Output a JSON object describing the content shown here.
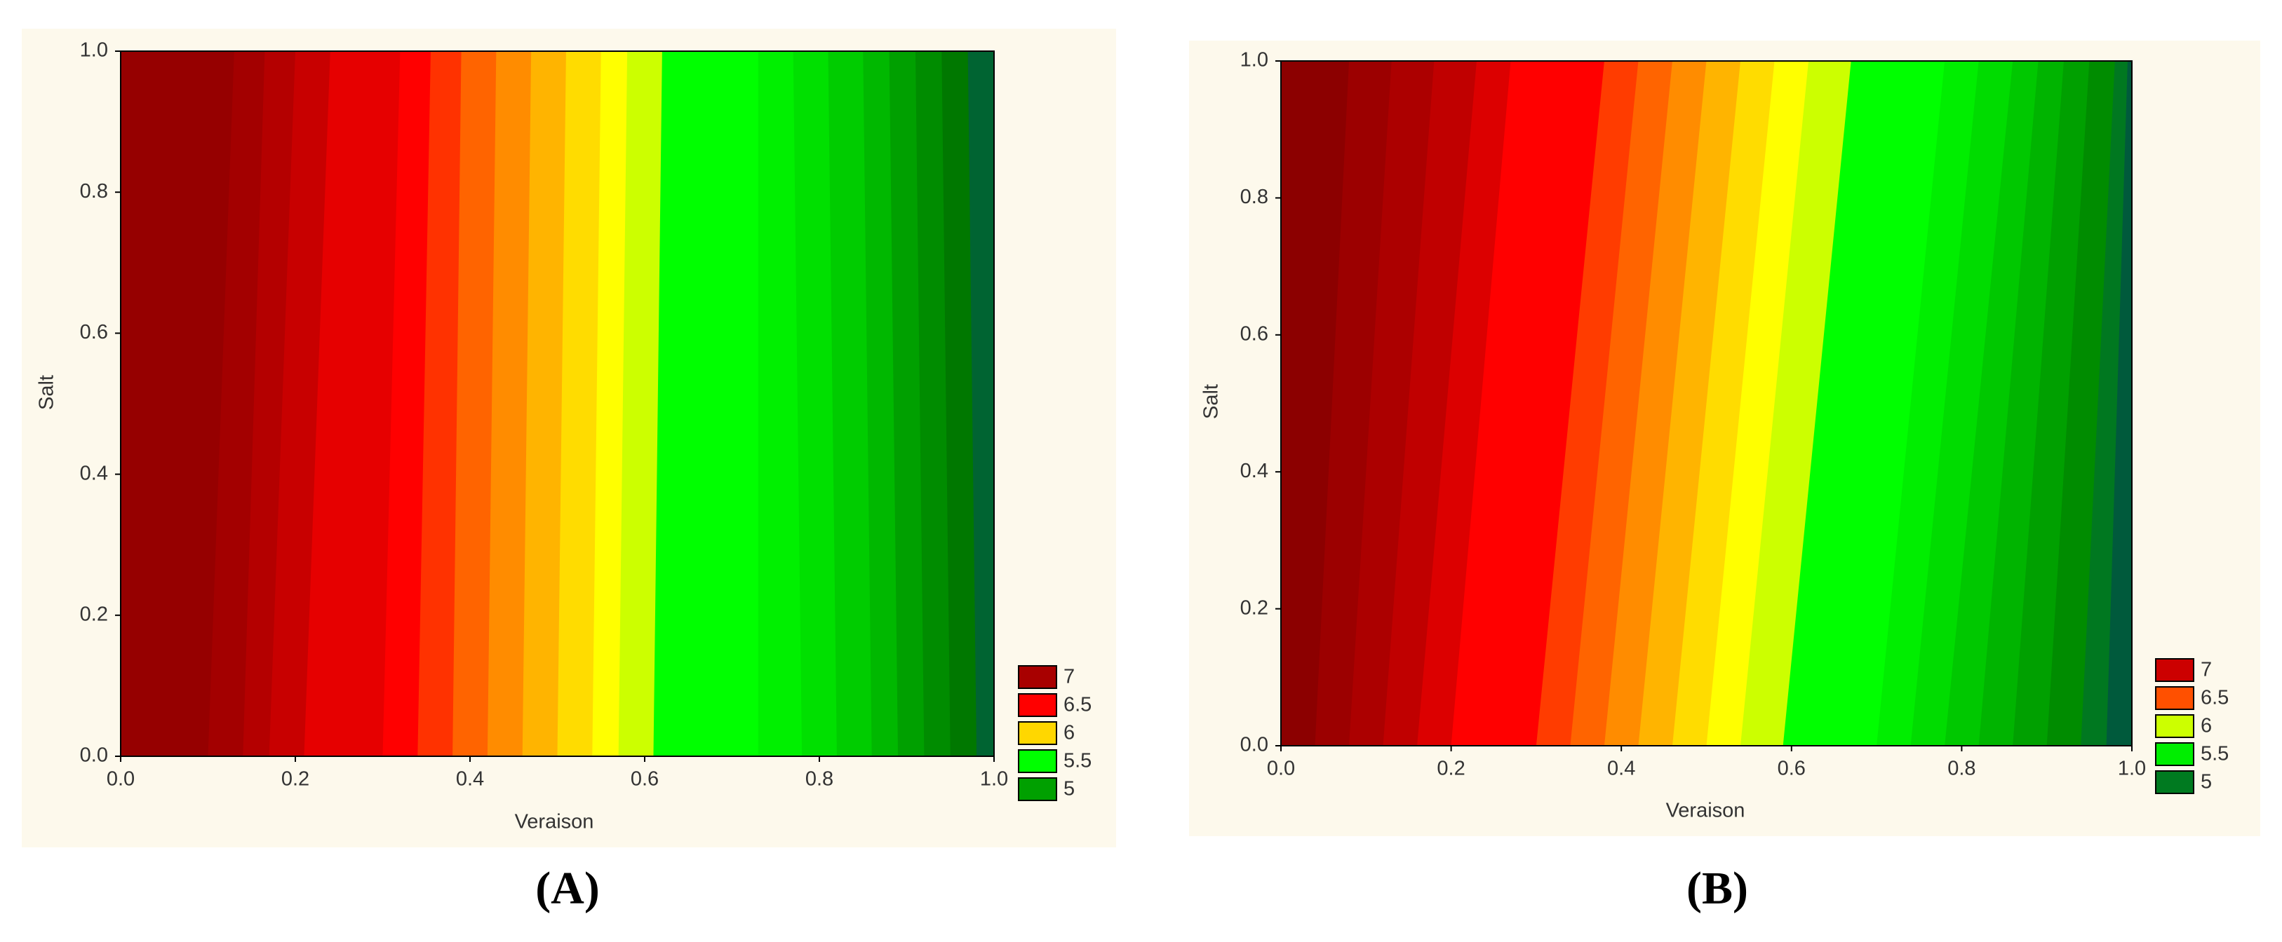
{
  "chart_data": [
    {
      "type": "contour",
      "panel_label": "(A)",
      "xlabel": "Veraison",
      "ylabel": "Salt",
      "xlim": [
        0,
        1
      ],
      "ylim": [
        0,
        1
      ],
      "xticks": [
        {
          "value": 0,
          "label": "0.0"
        },
        0.2,
        0.4,
        0.6,
        0.8,
        {
          "value": 1,
          "label": "1.0"
        }
      ],
      "yticks": [
        {
          "value": 0,
          "label": "0.0"
        },
        0.2,
        0.4,
        0.6,
        0.8,
        {
          "value": 1,
          "label": "1.0"
        }
      ],
      "boundaries_bottom": [
        0.1,
        0.14,
        0.17,
        0.21,
        0.3,
        0.34,
        0.38,
        0.42,
        0.46,
        0.5,
        0.54,
        0.57,
        0.61,
        0.73,
        0.78,
        0.82,
        0.86,
        0.89,
        0.92,
        0.95,
        0.98
      ],
      "boundaries_top": [
        0.13,
        0.165,
        0.2,
        0.24,
        0.32,
        0.355,
        0.39,
        0.43,
        0.47,
        0.51,
        0.55,
        0.58,
        0.62,
        0.73,
        0.77,
        0.81,
        0.85,
        0.88,
        0.91,
        0.94,
        0.97
      ],
      "band_colors": [
        "#960000",
        "#a30000",
        "#b40000",
        "#c80000",
        "#e60000",
        "#ff0000",
        "#ff3200",
        "#ff6400",
        "#ff8c00",
        "#ffb400",
        "#ffdc00",
        "#ffff00",
        "#ccff00",
        "#00ff00",
        "#00f000",
        "#00e000",
        "#00cc00",
        "#00b800",
        "#00a000",
        "#008c00",
        "#007800",
        "#006432"
      ],
      "legend_levels": [
        7,
        6.5,
        6,
        5.5,
        5
      ],
      "legend_colors": [
        "#a80000",
        "#ff0000",
        "#ffd700",
        "#00ff00",
        "#00a000"
      ]
    },
    {
      "type": "contour",
      "panel_label": "(B)",
      "xlabel": "Veraison",
      "ylabel": "Salt",
      "xlim": [
        0,
        1
      ],
      "ylim": [
        0,
        1
      ],
      "xticks": [
        {
          "value": 0,
          "label": "0.0"
        },
        0.2,
        0.4,
        0.6,
        0.8,
        {
          "value": 1,
          "label": "1.0"
        }
      ],
      "yticks": [
        {
          "value": 0,
          "label": "0.0"
        },
        0.2,
        0.4,
        0.6,
        0.8,
        {
          "value": 1,
          "label": "1.0"
        }
      ],
      "boundaries_bottom": [
        0.04,
        0.08,
        0.12,
        0.16,
        0.2,
        0.3,
        0.34,
        0.38,
        0.42,
        0.46,
        0.5,
        0.54,
        0.59,
        0.7,
        0.74,
        0.78,
        0.82,
        0.86,
        0.9,
        0.94,
        0.97
      ],
      "boundaries_top": [
        0.08,
        0.13,
        0.18,
        0.23,
        0.27,
        0.38,
        0.42,
        0.46,
        0.5,
        0.54,
        0.58,
        0.62,
        0.67,
        0.78,
        0.82,
        0.86,
        0.89,
        0.92,
        0.95,
        0.98,
        0.995
      ],
      "band_colors": [
        "#8c0000",
        "#9c0000",
        "#ac0000",
        "#c00000",
        "#dc0000",
        "#ff0000",
        "#ff3c00",
        "#ff6400",
        "#ff8c00",
        "#ffb400",
        "#ffdc00",
        "#ffff00",
        "#ccff00",
        "#00ff00",
        "#00ee00",
        "#00dc00",
        "#00c800",
        "#00b400",
        "#00a000",
        "#008c00",
        "#007820",
        "#005a3c"
      ],
      "legend_levels": [
        7,
        6.5,
        6,
        5.5,
        5
      ],
      "legend_colors": [
        "#cc0000",
        "#ff5000",
        "#ccff00",
        "#00ee00",
        "#007a20"
      ]
    }
  ]
}
